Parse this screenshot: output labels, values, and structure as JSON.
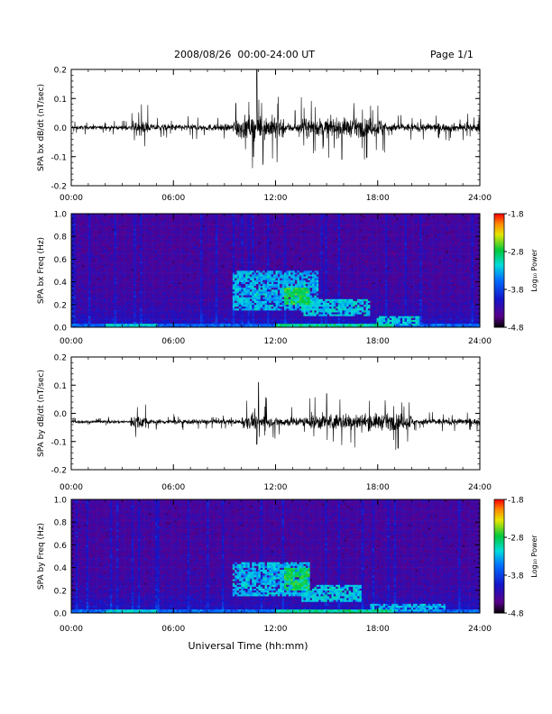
{
  "header": {
    "title": "2008/08/26  00:00-24:00 UT",
    "page": "Page 1/1"
  },
  "chart_data": [
    {
      "type": "line",
      "series_label": "SPA bx",
      "ylabel": "SPA bx dB/dt (nT/sec)",
      "ylim": [
        -0.2,
        0.2
      ],
      "yticks": [
        "0.2",
        "0.1",
        "0.0",
        "-0.1",
        "-0.2"
      ],
      "xlim": [
        0,
        24
      ],
      "xticks": [
        "00:00",
        "06:00",
        "12:00",
        "18:00",
        "24:00"
      ],
      "baseline": 0.0,
      "activity": [
        {
          "start": 0,
          "end": 3.5,
          "amplitude": 0.012
        },
        {
          "start": 3.5,
          "end": 4.5,
          "amplitude": 0.04
        },
        {
          "start": 4.5,
          "end": 9.5,
          "amplitude": 0.02
        },
        {
          "start": 9.5,
          "end": 12.5,
          "amplitude": 0.07
        },
        {
          "start": 12.5,
          "end": 13.5,
          "amplitude": 0.03
        },
        {
          "start": 13.5,
          "end": 18.5,
          "amplitude": 0.055
        },
        {
          "start": 18.5,
          "end": 24,
          "amplitude": 0.025
        }
      ],
      "peaks": [
        {
          "x": 10.9,
          "y": 0.2
        },
        {
          "x": 10.7,
          "y": -0.1
        },
        {
          "x": 15.9,
          "y": -0.11
        }
      ]
    },
    {
      "type": "heatmap",
      "series_label": "SPA bx",
      "ylabel": "SPA bx Freq (Hz)",
      "ylim": [
        0.0,
        1.0
      ],
      "yticks": [
        "1.0",
        "0.8",
        "0.6",
        "0.4",
        "0.2",
        "0.0"
      ],
      "xlim": [
        0,
        24
      ],
      "xticks": [
        "00:00",
        "06:00",
        "12:00",
        "18:00",
        "24:00"
      ],
      "colorbar": {
        "label": "Log₁₀ Power",
        "min": -4.8,
        "max": -1.8,
        "ticks": [
          "-1.8",
          "-2.8",
          "-3.8",
          "-4.8"
        ]
      },
      "features": [
        {
          "t0": 9.5,
          "t1": 14.5,
          "f0": 0.15,
          "f1": 0.5,
          "level": -3.3
        },
        {
          "t0": 12.5,
          "t1": 14.0,
          "f0": 0.2,
          "f1": 0.35,
          "level": -2.8
        },
        {
          "t0": 13.5,
          "t1": 17.5,
          "f0": 0.1,
          "f1": 0.25,
          "level": -3.2
        },
        {
          "t0": 18.0,
          "t1": 20.5,
          "f0": 0.02,
          "f1": 0.1,
          "level": -3.2
        }
      ]
    },
    {
      "type": "line",
      "series_label": "SPA by",
      "ylabel": "SPA by dB/dt (nT/sec)",
      "ylim": [
        -0.2,
        0.2
      ],
      "yticks": [
        "0.2",
        "0.1",
        "0.0",
        "-0.1",
        "-0.2"
      ],
      "xlim": [
        0,
        24
      ],
      "xticks": [
        "00:00",
        "06:00",
        "12:00",
        "18:00",
        "24:00"
      ],
      "baseline": -0.03,
      "activity": [
        {
          "start": 0,
          "end": 3.5,
          "amplitude": 0.01
        },
        {
          "start": 3.5,
          "end": 4.5,
          "amplitude": 0.04
        },
        {
          "start": 4.5,
          "end": 10.0,
          "amplitude": 0.015
        },
        {
          "start": 10.0,
          "end": 11.5,
          "amplitude": 0.045
        },
        {
          "start": 11.5,
          "end": 14.0,
          "amplitude": 0.03
        },
        {
          "start": 14.0,
          "end": 20.0,
          "amplitude": 0.05
        },
        {
          "start": 20.0,
          "end": 24,
          "amplitude": 0.02
        }
      ],
      "peaks": [
        {
          "x": 11.0,
          "y": 0.11
        },
        {
          "x": 15.0,
          "y": 0.07
        },
        {
          "x": 10.9,
          "y": -0.11
        }
      ]
    },
    {
      "type": "heatmap",
      "series_label": "SPA by",
      "ylabel": "SPA by Freq (Hz)",
      "ylim": [
        0.0,
        1.0
      ],
      "yticks": [
        "1.0",
        "0.8",
        "0.6",
        "0.4",
        "0.2",
        "0.0"
      ],
      "xlim": [
        0,
        24
      ],
      "xticks": [
        "00:00",
        "06:00",
        "12:00",
        "18:00",
        "24:00"
      ],
      "colorbar": {
        "label": "Log₁₀ Power",
        "min": -4.8,
        "max": -1.8,
        "ticks": [
          "-1.8",
          "-2.8",
          "-3.8",
          "-4.8"
        ]
      },
      "features": [
        {
          "t0": 9.5,
          "t1": 14.0,
          "f0": 0.15,
          "f1": 0.45,
          "level": -3.3
        },
        {
          "t0": 12.5,
          "t1": 14.0,
          "f0": 0.2,
          "f1": 0.4,
          "level": -2.8
        },
        {
          "t0": 13.5,
          "t1": 17.0,
          "f0": 0.1,
          "f1": 0.25,
          "level": -3.2
        },
        {
          "t0": 17.5,
          "t1": 22.0,
          "f0": 0.02,
          "f1": 0.08,
          "level": -3.3
        }
      ]
    }
  ],
  "xlabel": "Universal Time (hh:mm)"
}
